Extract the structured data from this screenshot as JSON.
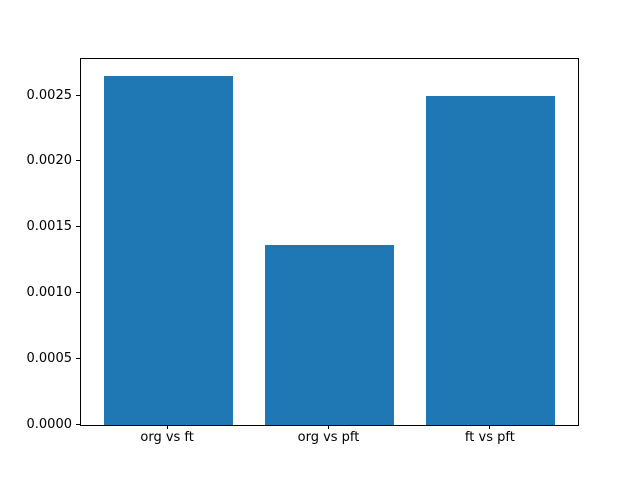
{
  "chart_data": {
    "type": "bar",
    "categories": [
      "org vs ft",
      "org vs pft",
      "ft vs pft"
    ],
    "values": [
      0.00265,
      0.001365,
      0.0025
    ],
    "title": "",
    "xlabel": "",
    "ylabel": "",
    "ylim": [
      0,
      0.0027825
    ],
    "xlim": [
      -0.54,
      2.54
    ],
    "x_positions": [
      0,
      1,
      2
    ],
    "bar_width": 0.8,
    "yticks": [
      {
        "value": 0.0,
        "label": "0.0000"
      },
      {
        "value": 0.0005,
        "label": "0.0005"
      },
      {
        "value": 0.001,
        "label": "0.0010"
      },
      {
        "value": 0.0015,
        "label": "0.0015"
      },
      {
        "value": 0.002,
        "label": "0.0020"
      },
      {
        "value": 0.0025,
        "label": "0.0025"
      }
    ],
    "grid": false,
    "legend": null,
    "bar_color": "#1f77b4",
    "spine_color": "#000000",
    "text_color": "#000000",
    "background_color": "#ffffff"
  }
}
